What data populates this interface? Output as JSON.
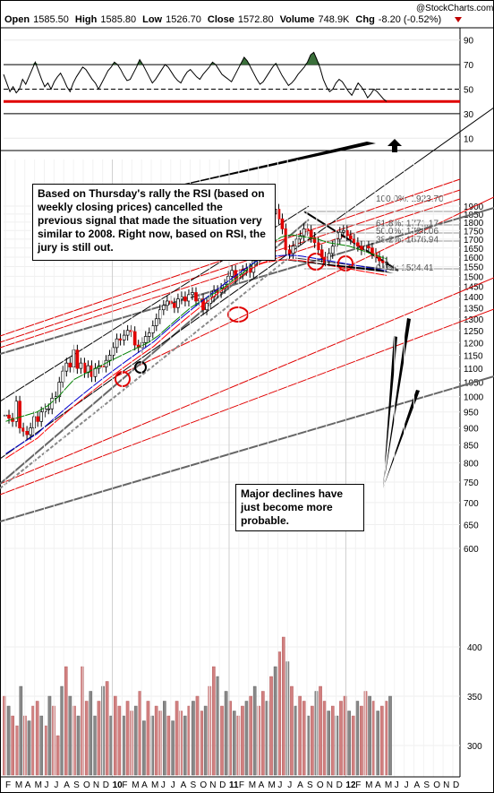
{
  "header": {
    "open_label": "Open",
    "open": "1585.50",
    "high_label": "High",
    "high": "1585.80",
    "low_label": "Low",
    "low": "1526.70",
    "close_label": "Close",
    "close": "1572.80",
    "volume_label": "Volume",
    "volume": "748.9K",
    "chg_label": "Chg",
    "chg": "-8.20 (-0.52%)",
    "watermark": "@StockCharts.com"
  },
  "annotations": {
    "rsi_note": "Based on Thursday's rally the RSI (based on weekly closing prices) cancelled the previous signal that made the situation very similar to 2008. Right now, based on RSI, the jury is still out.",
    "decline_note": "Major declines have just become more probable."
  },
  "colors": {
    "red_line": "#e00000",
    "ma_green": "#008000",
    "ma_blue": "#0000cc",
    "ma_red": "#ff0000",
    "rsi_fill": "#3a6f3a",
    "vol_up": "#d08080",
    "vol_down": "#888888"
  },
  "chart_data": [
    {
      "type": "line",
      "panel": "RSI",
      "y_ticks": [
        "90",
        "70",
        "50",
        "30",
        "10"
      ],
      "levels": [
        70,
        50,
        30
      ],
      "highlight_level": 40,
      "ylim": [
        0,
        100
      ],
      "values": [
        62,
        55,
        48,
        52,
        47,
        50,
        58,
        54,
        60,
        66,
        72,
        65,
        58,
        52,
        55,
        50,
        56,
        60,
        63,
        58,
        52,
        48,
        55,
        60,
        64,
        68,
        66,
        62,
        58,
        55,
        50,
        55,
        60,
        65,
        68,
        72,
        70,
        66,
        61,
        57,
        58,
        63,
        68,
        74,
        70,
        65,
        60,
        55,
        58,
        62,
        66,
        70,
        68,
        64,
        60,
        57,
        55,
        60,
        64,
        66,
        63,
        60,
        58,
        62,
        65,
        68,
        72,
        70,
        66,
        62,
        60,
        58,
        56,
        61,
        66,
        71,
        76,
        73,
        68,
        63,
        58,
        54,
        56,
        60,
        64,
        68,
        71,
        66,
        61,
        57,
        53,
        55,
        58,
        62,
        65,
        68,
        72,
        78,
        80,
        74,
        67,
        58,
        52,
        48,
        50,
        55,
        58,
        56,
        52,
        48,
        45,
        50,
        55,
        52,
        48,
        43,
        46,
        50,
        48,
        45,
        42,
        40
      ]
    },
    {
      "type": "line",
      "panel": "Price",
      "title": "",
      "y_ticks": [
        "1900",
        "1850",
        "1800",
        "1750",
        "1700",
        "1650",
        "1600",
        "1550",
        "1500",
        "1450",
        "1400",
        "1350",
        "1300",
        "1250",
        "1200",
        "1150",
        "1100",
        "1050",
        "1000",
        "950",
        "900",
        "850",
        "800",
        "750",
        "700",
        "650",
        "600"
      ],
      "x_ticks": [
        "F",
        "M",
        "A",
        "M",
        "J",
        "J",
        "A",
        "S",
        "O",
        "N",
        "D",
        "10",
        "F",
        "M",
        "A",
        "M",
        "J",
        "J",
        "A",
        "S",
        "O",
        "N",
        "D",
        "11",
        "F",
        "M",
        "A",
        "M",
        "J",
        "J",
        "A",
        "S",
        "O",
        "N",
        "D",
        "12",
        "F",
        "M",
        "A",
        "M",
        "J",
        "J",
        "A",
        "S",
        "O",
        "N",
        "D"
      ],
      "fib_levels": [
        {
          "label": "100.0%: 1923.70",
          "value": 1923.7
        },
        {
          "label": "61.8%: 1771.17",
          "value": 1771.17
        },
        {
          "label": "50.0%: 1724.06",
          "value": 1724.06
        },
        {
          "label": "38.2%: 1676.94",
          "value": 1676.94
        },
        {
          "label": "0.0%: 1524.41",
          "value": 1524.41
        }
      ],
      "closes": [
        940,
        930,
        920,
        985,
        900,
        890,
        880,
        900,
        935,
        920,
        950,
        960,
        960,
        995,
        1000,
        1050,
        1090,
        1120,
        1105,
        1170,
        1100,
        1120,
        1085,
        1110,
        1070,
        1100,
        1110,
        1105,
        1130,
        1150,
        1180,
        1215,
        1210,
        1230,
        1250,
        1245,
        1190,
        1180,
        1200,
        1225,
        1240,
        1270,
        1300,
        1340,
        1360,
        1380,
        1370,
        1350,
        1390,
        1400,
        1380,
        1410,
        1420,
        1380,
        1390,
        1340,
        1370,
        1400,
        1430,
        1420,
        1440,
        1460,
        1500,
        1530,
        1490,
        1510,
        1530,
        1540,
        1520,
        1580,
        1610,
        1660,
        1700,
        1780,
        1850,
        1880,
        1820,
        1760,
        1640,
        1620,
        1660,
        1700,
        1720,
        1760,
        1750,
        1710,
        1680,
        1640,
        1600,
        1580,
        1620,
        1660,
        1700,
        1740,
        1750,
        1720,
        1700,
        1680,
        1660,
        1640,
        1660,
        1650,
        1620,
        1600,
        1580,
        1570,
        1573
      ],
      "ma50": [
        920,
        925,
        930,
        935,
        940,
        945,
        950,
        960,
        970,
        985,
        1000,
        1020,
        1040,
        1060,
        1070,
        1080,
        1090,
        1100,
        1110,
        1120,
        1130,
        1140,
        1150,
        1160,
        1170,
        1180,
        1190,
        1200,
        1215,
        1230,
        1250,
        1270,
        1290,
        1310,
        1330,
        1350,
        1365,
        1380,
        1395,
        1410,
        1425,
        1440,
        1460,
        1480,
        1500,
        1520,
        1545,
        1570,
        1600,
        1630,
        1660,
        1690,
        1710,
        1720,
        1725,
        1720,
        1715,
        1710,
        1705,
        1700,
        1690,
        1680,
        1675,
        1670,
        1665,
        1660,
        1650,
        1640,
        1630,
        1620,
        1610,
        1600,
        1590
      ],
      "ma200": [
        850,
        860,
        870,
        880,
        890,
        900,
        910,
        925,
        940,
        955,
        970,
        985,
        1000,
        1015,
        1030,
        1045,
        1060,
        1075,
        1090,
        1105,
        1120,
        1135,
        1150,
        1165,
        1180,
        1195,
        1210,
        1225,
        1240,
        1260,
        1280,
        1300,
        1320,
        1340,
        1360,
        1380,
        1400,
        1420,
        1440,
        1460,
        1480,
        1500,
        1520,
        1540,
        1560,
        1580,
        1600,
        1620,
        1635,
        1645,
        1650,
        1655,
        1658,
        1660,
        1660,
        1658,
        1655,
        1650,
        1645,
        1640,
        1635,
        1630,
        1625,
        1620,
        1615,
        1610,
        1605,
        1600,
        1595,
        1590,
        1585,
        1580,
        1575
      ]
    },
    {
      "type": "bar",
      "panel": "Volume",
      "y_ticks": [
        "400",
        "350",
        "300"
      ],
      "values": [
        350,
        340,
        330,
        320,
        360,
        330,
        325,
        340,
        345,
        330,
        320,
        350,
        340,
        310,
        360,
        380,
        350,
        340,
        330,
        380,
        345,
        355,
        330,
        345,
        360,
        365,
        330,
        350,
        340,
        330,
        345,
        335,
        340,
        355,
        325,
        345,
        330,
        340,
        335,
        345,
        330,
        325,
        345,
        335,
        330,
        340,
        345,
        350,
        335,
        340,
        360,
        380,
        370,
        340,
        355,
        345,
        335,
        330,
        340,
        345,
        350,
        360,
        340,
        355,
        345,
        370,
        380,
        395,
        410,
        385,
        360,
        340,
        350,
        345,
        330,
        340,
        355,
        360,
        345,
        335,
        340,
        330,
        345,
        350,
        335,
        330,
        345,
        340,
        355,
        350,
        345,
        335,
        340,
        345,
        350
      ],
      "up": [
        1,
        0,
        1,
        1,
        0,
        1,
        0,
        1,
        1,
        0,
        1,
        0,
        1,
        1,
        0,
        1,
        0,
        1,
        0,
        1,
        1,
        0,
        0,
        1,
        0,
        1,
        0,
        1,
        1,
        0,
        1,
        1,
        0,
        1,
        0,
        1,
        0,
        1,
        1,
        0,
        1,
        0,
        1,
        1,
        0,
        1,
        0,
        1,
        1,
        0,
        1,
        1,
        0,
        1,
        0,
        1,
        0,
        1,
        1,
        0,
        1,
        0,
        1,
        1,
        0,
        1,
        0,
        1,
        1,
        0,
        1,
        0,
        1,
        1,
        0,
        1,
        0,
        1,
        1,
        0,
        1,
        0,
        1,
        1,
        0,
        1,
        0,
        1,
        1,
        0,
        1,
        0,
        1,
        1,
        0
      ],
      "ylim": [
        270,
        420
      ]
    }
  ]
}
